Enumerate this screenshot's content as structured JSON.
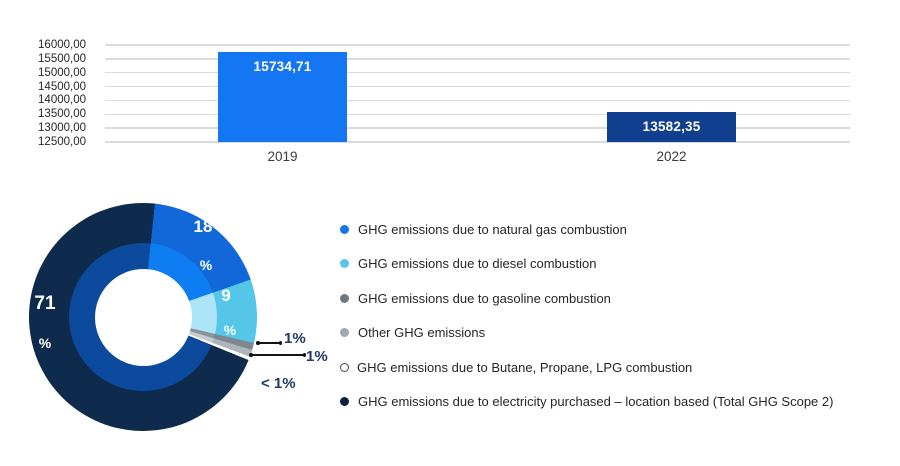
{
  "chart_data": [
    {
      "type": "bar",
      "title": "",
      "categories": [
        "2019",
        "2022"
      ],
      "values": [
        15734.71,
        13582.35
      ],
      "value_labels": [
        "15734,71",
        "13582,35"
      ],
      "bar_colors": [
        "#1476F2",
        "#0F3F8E"
      ],
      "ylim": [
        12500,
        16000
      ],
      "ytick_step": 500,
      "ytick_labels": [
        "16000,00",
        "15500,00",
        "15000,00",
        "14500,00",
        "14000,00",
        "13500,00",
        "13000,00",
        "12500,00"
      ],
      "grid": true,
      "gridline_color": "#DBDBDB",
      "legend_position": "none"
    },
    {
      "type": "pie",
      "style": "doughnut-two-ring",
      "start_angle_deg": 6,
      "segments": [
        {
          "label": "GHG emissions due to natural gas combustion",
          "value": 18,
          "display": "18 %",
          "outer_color": "#1268D9",
          "inner_color": "#0F7DF2",
          "marker_color": "#1574E8",
          "marker_style": "filled"
        },
        {
          "label": "GHG emissions due to diesel combustion",
          "value": 9,
          "display": "9 %",
          "outer_color": "#55C6E8",
          "inner_color": "#ABE5F7",
          "marker_color": "#55C6E8",
          "marker_style": "filled"
        },
        {
          "label": "GHG emissions due to gasoline combustion",
          "value": 1,
          "display": "1%",
          "outer_color": "#7E868E",
          "inner_color": "#8A929A",
          "marker_color": "#6C7780",
          "marker_style": "filled"
        },
        {
          "label": "Other GHG emissions",
          "value": 1,
          "display": "1%",
          "outer_color": "#AEB4B9",
          "inner_color": "#C6CBD0",
          "marker_color": "#9EA7AE",
          "marker_style": "filled"
        },
        {
          "label": "GHG emissions due to Butane, Propane, LPG combustion",
          "value": 0.5,
          "display": "< 1%",
          "outer_color": "#FFFFFF",
          "inner_color": "#FFFFFF",
          "marker_color": "#FFFFFF",
          "marker_style": "hollow"
        },
        {
          "label": "GHG emissions due to electricity purchased – location based (Total GHG Scope 2)",
          "value": 70.5,
          "display": "71 %",
          "outer_color": "#0E2A4C",
          "inner_color": "#0B4A9C",
          "marker_color": "#0E2240",
          "marker_style": "filled"
        }
      ],
      "labels": {
        "natural_gas_value": "18",
        "natural_gas_pct": "%",
        "diesel_value": "9",
        "diesel_pct": "%",
        "electricity_value": "71",
        "electricity_pct": "%",
        "callout_gasoline": "1%",
        "callout_other": "1%",
        "callout_lpg": "< 1%"
      },
      "legend_position": "right"
    }
  ]
}
